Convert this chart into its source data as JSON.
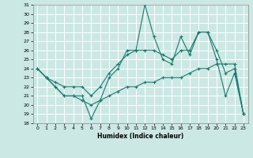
{
  "title": "",
  "xlabel": "Humidex (Indice chaleur)",
  "ylabel": "",
  "bg_color": "#cce8e4",
  "grid_color": "#ffffff",
  "line_color": "#1a7a6e",
  "xlim": [
    -0.5,
    23.5
  ],
  "ylim": [
    18,
    31
  ],
  "xticks": [
    0,
    1,
    2,
    3,
    4,
    5,
    6,
    7,
    8,
    9,
    10,
    11,
    12,
    13,
    14,
    15,
    16,
    17,
    18,
    19,
    20,
    21,
    22,
    23
  ],
  "yticks": [
    18,
    19,
    20,
    21,
    22,
    23,
    24,
    25,
    26,
    27,
    28,
    29,
    30,
    31
  ],
  "line1_x": [
    0,
    1,
    2,
    3,
    4,
    5,
    6,
    7,
    8,
    9,
    10,
    11,
    12,
    13,
    14,
    15,
    16,
    17,
    18,
    19,
    20,
    21,
    22,
    23
  ],
  "line1_y": [
    24,
    23,
    22,
    21,
    21,
    21,
    18.5,
    20.5,
    23,
    24,
    26,
    26,
    31,
    27.5,
    25,
    24.5,
    27.5,
    25.5,
    28,
    28,
    25,
    21,
    23.5,
    19
  ],
  "line2_x": [
    0,
    1,
    2,
    3,
    4,
    5,
    6,
    7,
    8,
    9,
    10,
    11,
    12,
    13,
    14,
    15,
    16,
    17,
    18,
    19,
    20,
    21,
    22,
    23
  ],
  "line2_y": [
    24,
    23,
    22.5,
    22,
    22,
    22,
    21,
    22,
    23.5,
    24.5,
    25.5,
    26,
    26,
    26,
    25.5,
    25,
    26,
    26,
    28,
    28,
    26,
    23.5,
    24,
    19
  ],
  "line3_x": [
    0,
    1,
    2,
    3,
    4,
    5,
    6,
    7,
    8,
    9,
    10,
    11,
    12,
    13,
    14,
    15,
    16,
    17,
    18,
    19,
    20,
    21,
    22,
    23
  ],
  "line3_y": [
    24,
    23,
    22,
    21,
    21,
    20.5,
    20,
    20.5,
    21,
    21.5,
    22,
    22,
    22.5,
    22.5,
    23,
    23,
    23,
    23.5,
    24,
    24,
    24.5,
    24.5,
    24.5,
    19
  ]
}
